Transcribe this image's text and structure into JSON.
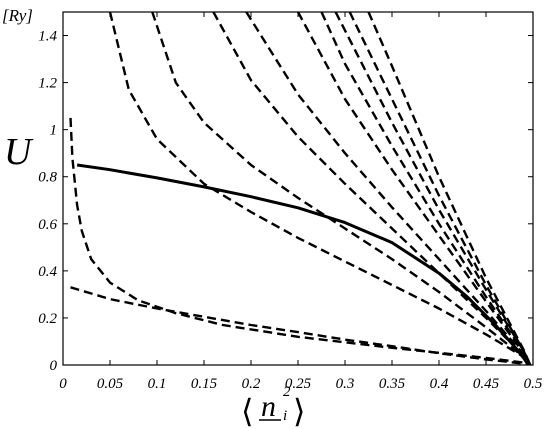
{
  "chart_data": {
    "type": "line",
    "title": "",
    "ylabel": "U",
    "yunit": "[Ry]",
    "xlabel": "⟨n_i^2⟩",
    "xlim": [
      0,
      0.5
    ],
    "ylim": [
      0,
      1.5
    ],
    "xticks": [
      "0",
      "0.05",
      "0.1",
      "0.15",
      "0.2",
      "0.25",
      "0.3",
      "0.35",
      "0.4",
      "0.45",
      "0.5"
    ],
    "xtick_values": [
      0,
      0.05,
      0.1,
      0.15,
      0.2,
      0.25,
      0.3,
      0.35,
      0.4,
      0.45,
      0.5
    ],
    "yticks": [
      "0",
      "0.2",
      "0.4",
      "0.6",
      "0.8",
      "1",
      "1.2",
      "1.4"
    ],
    "ytick_values": [
      0,
      0.2,
      0.4,
      0.6,
      0.8,
      1.0,
      1.2,
      1.4
    ],
    "grid": false,
    "series": [
      {
        "style": "solid",
        "x": [
          0.015,
          0.05,
          0.1,
          0.15,
          0.2,
          0.25,
          0.3,
          0.35,
          0.4,
          0.43,
          0.46,
          0.48,
          0.49,
          0.495
        ],
        "y": [
          0.85,
          0.83,
          0.795,
          0.757,
          0.715,
          0.668,
          0.605,
          0.52,
          0.39,
          0.29,
          0.17,
          0.08,
          0.03,
          0.0
        ]
      },
      {
        "style": "dashed",
        "x": [
          0.008,
          0.01,
          0.015,
          0.02,
          0.03,
          0.05,
          0.08,
          0.12,
          0.17,
          0.25,
          0.35,
          0.45,
          0.49,
          0.497
        ],
        "y": [
          1.05,
          0.88,
          0.68,
          0.57,
          0.45,
          0.35,
          0.275,
          0.22,
          0.17,
          0.12,
          0.073,
          0.03,
          0.01,
          0.0
        ]
      },
      {
        "style": "dashed",
        "x": [
          0.008,
          0.05,
          0.1,
          0.15,
          0.2,
          0.25,
          0.3,
          0.35,
          0.4,
          0.45,
          0.49,
          0.497
        ],
        "y": [
          0.33,
          0.28,
          0.24,
          0.205,
          0.17,
          0.14,
          0.108,
          0.08,
          0.05,
          0.024,
          0.006,
          0.0
        ]
      },
      {
        "style": "dashed",
        "x": [
          0.05,
          0.07,
          0.1,
          0.15,
          0.2,
          0.25,
          0.3,
          0.35,
          0.4,
          0.45,
          0.49,
          0.497
        ],
        "y": [
          1.5,
          1.17,
          0.96,
          0.77,
          0.65,
          0.54,
          0.44,
          0.34,
          0.24,
          0.13,
          0.035,
          0.0
        ]
      },
      {
        "style": "dashed",
        "x": [
          0.095,
          0.12,
          0.15,
          0.2,
          0.25,
          0.3,
          0.35,
          0.4,
          0.45,
          0.49,
          0.497
        ],
        "y": [
          1.5,
          1.2,
          1.03,
          0.85,
          0.71,
          0.58,
          0.45,
          0.31,
          0.16,
          0.035,
          0.0
        ]
      },
      {
        "style": "dashed",
        "x": [
          0.16,
          0.2,
          0.25,
          0.3,
          0.35,
          0.4,
          0.45,
          0.49,
          0.497
        ],
        "y": [
          1.5,
          1.21,
          0.97,
          0.77,
          0.58,
          0.39,
          0.2,
          0.04,
          0.0
        ]
      },
      {
        "style": "dashed",
        "x": [
          0.195,
          0.25,
          0.3,
          0.35,
          0.4,
          0.45,
          0.49,
          0.497
        ],
        "y": [
          1.5,
          1.15,
          0.9,
          0.67,
          0.45,
          0.23,
          0.045,
          0.0
        ]
      },
      {
        "style": "dashed",
        "x": [
          0.25,
          0.3,
          0.35,
          0.4,
          0.45,
          0.49,
          0.497
        ],
        "y": [
          1.5,
          1.13,
          0.83,
          0.55,
          0.27,
          0.05,
          0.0
        ]
      },
      {
        "style": "dashed",
        "x": [
          0.275,
          0.3,
          0.35,
          0.4,
          0.45,
          0.49,
          0.497
        ],
        "y": [
          1.5,
          1.28,
          0.93,
          0.6,
          0.29,
          0.055,
          0.0
        ]
      },
      {
        "style": "dashed",
        "x": [
          0.29,
          0.35,
          0.4,
          0.45,
          0.49,
          0.497
        ],
        "y": [
          1.5,
          1.03,
          0.66,
          0.32,
          0.06,
          0.0
        ]
      },
      {
        "style": "dashed",
        "x": [
          0.305,
          0.35,
          0.4,
          0.45,
          0.49,
          0.497
        ],
        "y": [
          1.5,
          1.13,
          0.72,
          0.34,
          0.06,
          0.0
        ]
      },
      {
        "style": "dashed",
        "x": [
          0.325,
          0.35,
          0.4,
          0.45,
          0.49,
          0.497
        ],
        "y": [
          1.5,
          1.27,
          0.8,
          0.37,
          0.065,
          0.0
        ]
      }
    ]
  }
}
